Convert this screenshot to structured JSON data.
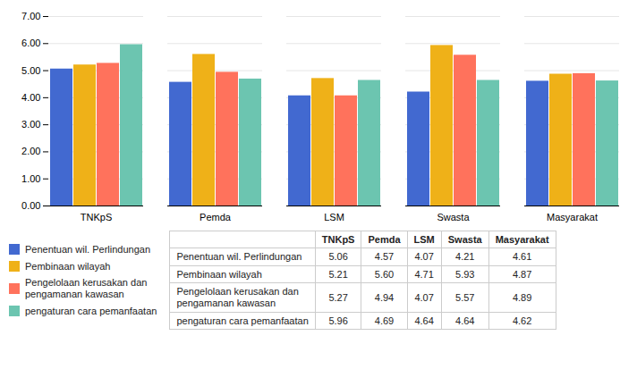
{
  "chart_data": {
    "type": "bar",
    "categories": [
      "TNKpS",
      "Pemda",
      "LSM",
      "Swasta",
      "Masyarakat"
    ],
    "series": [
      {
        "name": "Penentuan wil. Perlindungan",
        "values": [
          5.06,
          4.57,
          4.07,
          4.21,
          4.61
        ],
        "value_labels": [
          "5.06",
          "4.57",
          "4.07",
          "4.21",
          "4.61"
        ]
      },
      {
        "name": "Pembinaan wilayah",
        "values": [
          5.21,
          5.6,
          4.71,
          5.93,
          4.87
        ],
        "value_labels": [
          "5.21",
          "5.60",
          "4.71",
          "5.93",
          "4.87"
        ]
      },
      {
        "name": "Pengelolaan kerusakan dan\npengamanan kawasan",
        "values": [
          5.27,
          4.94,
          4.07,
          5.57,
          4.89
        ],
        "value_labels": [
          "5.27",
          "4.94",
          "4.07",
          "5.57",
          "4.89"
        ]
      },
      {
        "name": "pengaturan cara pemanfaatan",
        "values": [
          5.96,
          4.69,
          4.64,
          4.64,
          4.62
        ],
        "value_labels": [
          "5.96",
          "4.69",
          "4.64",
          "4.64",
          "4.62"
        ]
      }
    ],
    "ylim": [
      0,
      7
    ],
    "yticks": [
      {
        "value": 0,
        "label": "0.00"
      },
      {
        "value": 1,
        "label": "1.00"
      },
      {
        "value": 2,
        "label": "2.00"
      },
      {
        "value": 3,
        "label": "3.00"
      },
      {
        "value": 4,
        "label": "4.00"
      },
      {
        "value": 5,
        "label": "5.00"
      },
      {
        "value": 6,
        "label": "6.00"
      },
      {
        "value": 7,
        "label": "7.00"
      }
    ],
    "grid": true,
    "legend": "left"
  }
}
